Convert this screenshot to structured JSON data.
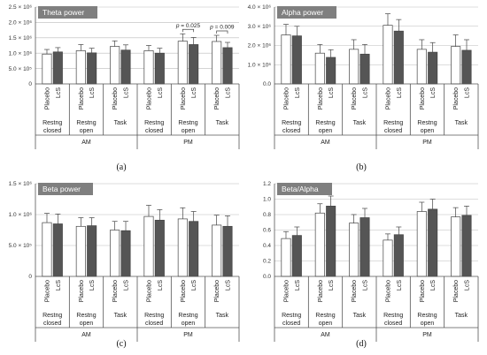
{
  "colors": {
    "placebo": "#ffffff",
    "lcs": "#555555",
    "title_bg": "#7f7f7f"
  },
  "chart_data": [
    {
      "type": "bar",
      "label": "(a)",
      "title": "Theta power",
      "yticks": [
        "0",
        "5.0 × 10⁵",
        "1.0 × 10⁶",
        "1.5 × 10⁶",
        "2.0 × 10⁶",
        "2.5 × 10⁶"
      ],
      "ylim": [
        0,
        2500000
      ],
      "ystep": 500000,
      "series": [
        {
          "name": "Placebo",
          "values": [
            970000,
            1080000,
            1220000,
            1080000,
            1390000,
            1380000
          ],
          "errors": [
            150000,
            200000,
            180000,
            170000,
            240000,
            200000
          ]
        },
        {
          "name": "LcS",
          "values": [
            1040000,
            1010000,
            1100000,
            1000000,
            1280000,
            1180000
          ],
          "errors": [
            140000,
            150000,
            170000,
            160000,
            230000,
            170000
          ]
        }
      ],
      "annotations": [
        {
          "text": "p = 0.025",
          "group": 4
        },
        {
          "text": "p = 0.009",
          "group": 5
        }
      ]
    },
    {
      "type": "bar",
      "label": "(b)",
      "title": "Alpha power",
      "yticks": [
        "0.0",
        "1.0 × 10⁶",
        "2.0 × 10⁶",
        "3.0 × 10⁶",
        "4.0 × 10⁶"
      ],
      "ylim": [
        0,
        4000000
      ],
      "ystep": 1000000,
      "series": [
        {
          "name": "Placebo",
          "values": [
            2550000,
            1600000,
            1800000,
            3050000,
            1800000,
            1950000
          ],
          "errors": [
            550000,
            450000,
            500000,
            600000,
            500000,
            600000
          ]
        },
        {
          "name": "LcS",
          "values": [
            2500000,
            1380000,
            1550000,
            2750000,
            1650000,
            1750000
          ],
          "errors": [
            500000,
            400000,
            500000,
            600000,
            500000,
            550000
          ]
        }
      ],
      "annotations": []
    },
    {
      "type": "bar",
      "label": "(c)",
      "title": "Beta power",
      "yticks": [
        "0",
        "5.0 × 10⁵",
        "1.0 × 10⁶",
        "1.5 × 10⁶"
      ],
      "ylim": [
        0,
        1500000
      ],
      "ystep": 500000,
      "series": [
        {
          "name": "Placebo",
          "values": [
            870000,
            810000,
            750000,
            970000,
            930000,
            830000
          ],
          "errors": [
            150000,
            140000,
            140000,
            180000,
            180000,
            160000
          ]
        },
        {
          "name": "LcS",
          "values": [
            850000,
            820000,
            740000,
            910000,
            890000,
            810000
          ],
          "errors": [
            160000,
            130000,
            150000,
            170000,
            160000,
            170000
          ]
        }
      ],
      "annotations": []
    },
    {
      "type": "bar",
      "label": "(d)",
      "title": "Beta/Alpha",
      "yticks": [
        "0.0",
        "0.2",
        "0.4",
        "0.6",
        "0.8",
        "1.0",
        "1.2"
      ],
      "ylim": [
        0,
        1.2
      ],
      "ystep": 0.2,
      "series": [
        {
          "name": "Placebo",
          "values": [
            0.49,
            0.82,
            0.69,
            0.47,
            0.84,
            0.77
          ],
          "errors": [
            0.09,
            0.12,
            0.11,
            0.08,
            0.12,
            0.12
          ]
        },
        {
          "name": "LcS",
          "values": [
            0.53,
            0.91,
            0.76,
            0.54,
            0.87,
            0.79
          ],
          "errors": [
            0.11,
            0.13,
            0.12,
            0.1,
            0.13,
            0.12
          ]
        }
      ],
      "annotations": []
    }
  ],
  "axis": {
    "bar_labels": [
      "Placebo",
      "LcS"
    ],
    "conditions": [
      {
        "line1": "Restng",
        "line2": "closed"
      },
      {
        "line1": "Restng",
        "line2": "open"
      },
      {
        "line1": "Task",
        "line2": ""
      },
      {
        "line1": "Restng",
        "line2": "closed"
      },
      {
        "line1": "Restng",
        "line2": "open"
      },
      {
        "line1": "Task",
        "line2": ""
      }
    ],
    "sessions": [
      "AM",
      "PM"
    ]
  }
}
